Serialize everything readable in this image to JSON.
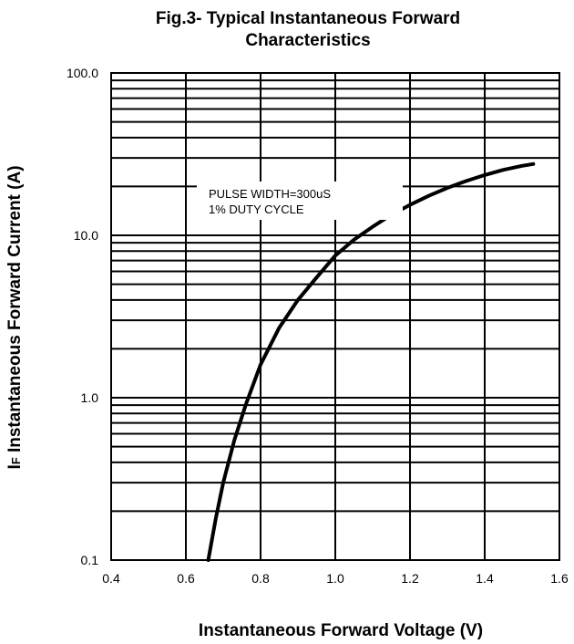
{
  "chart_data": {
    "type": "line",
    "title_lines": [
      "Fig.3- Typical Instantaneous Forward",
      "Characteristics"
    ],
    "xlabel": "Instantaneous Forward Voltage (V)",
    "ylabel_prefix": "I",
    "ylabel_sub": "F",
    "ylabel_rest": " Instantaneous Forward Current (A)",
    "x_scale": "linear",
    "y_scale": "log",
    "xlim": [
      0.4,
      1.6
    ],
    "ylim": [
      0.1,
      100
    ],
    "x_ticks": [
      0.4,
      0.6,
      0.8,
      1.0,
      1.2,
      1.4,
      1.6
    ],
    "x_tick_labels": [
      "0.4",
      "0.6",
      "0.8",
      "1.0",
      "1.2",
      "1.4",
      "1.6"
    ],
    "y_ticks": [
      0.1,
      1,
      10,
      100
    ],
    "y_tick_labels": [
      "0.1",
      "1.0",
      "10.0",
      "100.0"
    ],
    "grid": true,
    "annotation_lines": [
      "PULSE WIDTH=300uS",
      "1% DUTY CYCLE"
    ],
    "series": [
      {
        "x": [
          0.66,
          0.68,
          0.7,
          0.73,
          0.76,
          0.8,
          0.85,
          0.9,
          0.95,
          1.0,
          1.05,
          1.1,
          1.15,
          1.2,
          1.25,
          1.3,
          1.35,
          1.4,
          1.45,
          1.5,
          1.53
        ],
        "y": [
          0.1,
          0.18,
          0.3,
          0.55,
          0.9,
          1.6,
          2.7,
          4.0,
          5.5,
          7.5,
          9.4,
          11.3,
          13.4,
          15.4,
          17.5,
          19.6,
          21.6,
          23.5,
          25.3,
          26.8,
          27.5
        ]
      }
    ],
    "line_color": "#000000",
    "grid_color": "#000000"
  }
}
